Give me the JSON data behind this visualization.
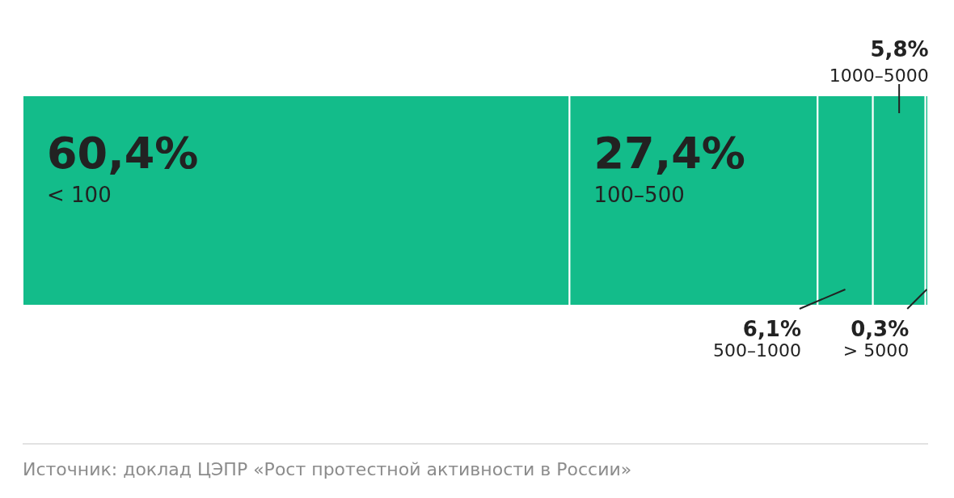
{
  "chart_data": {
    "type": "bar",
    "stacked": true,
    "orientation": "horizontal",
    "categories": [
      null
    ],
    "xlim": [
      0,
      100
    ],
    "tick_labels": false,
    "legend": false,
    "series": [
      {
        "name": "< 100",
        "color": "#13bc8a",
        "values": [
          60.4
        ],
        "value_labels": [
          "60,4%"
        ]
      },
      {
        "name": "100–500",
        "color": "#13bc8a",
        "values": [
          27.4
        ],
        "value_labels": [
          "27,4%"
        ]
      },
      {
        "name": "500–1000",
        "color": "#13bc8a",
        "values": [
          6.1
        ],
        "value_labels": [
          "6,1%"
        ]
      },
      {
        "name": "1000–5000",
        "color": "#13bc8a",
        "values": [
          5.8
        ],
        "value_labels": [
          "5,8%"
        ]
      },
      {
        "name": "> 5000",
        "color": "#13bc8a",
        "values": [
          0.3
        ],
        "value_labels": [
          "0,3%"
        ]
      }
    ],
    "annotations": [
      "Источник: доклад ЦЭПР «Рост протестной активности в России»"
    ]
  }
}
